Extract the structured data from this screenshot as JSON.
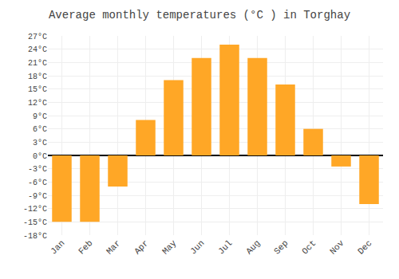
{
  "chart_data": {
    "type": "bar",
    "title": "Average monthly temperatures (°C ) in Torghay",
    "categories": [
      "Jan",
      "Feb",
      "Mar",
      "Apr",
      "May",
      "Jun",
      "Jul",
      "Aug",
      "Sep",
      "Oct",
      "Nov",
      "Dec"
    ],
    "values": [
      -15,
      -15,
      -7,
      8,
      17,
      22,
      25,
      22,
      16,
      6,
      -2.5,
      -11
    ],
    "color": "#FFA726",
    "ylim": [
      -18,
      27
    ],
    "yticks": [
      {
        "value": -18,
        "label": "-18°C"
      },
      {
        "value": -15,
        "label": "-15°C"
      },
      {
        "value": -12,
        "label": "-12°C"
      },
      {
        "value": -9,
        "label": "-9°C"
      },
      {
        "value": -6,
        "label": "-6°C"
      },
      {
        "value": -3,
        "label": "-3°C"
      },
      {
        "value": 0,
        "label": "0°C"
      },
      {
        "value": 3,
        "label": "3°C"
      },
      {
        "value": 6,
        "label": "6°C"
      },
      {
        "value": 9,
        "label": "9°C"
      },
      {
        "value": 12,
        "label": "12°C"
      },
      {
        "value": 15,
        "label": "15°C"
      },
      {
        "value": 18,
        "label": "18°C"
      },
      {
        "value": 21,
        "label": "21°C"
      },
      {
        "value": 24,
        "label": "24°C"
      },
      {
        "value": 27,
        "label": "27°C"
      }
    ],
    "grid": true
  }
}
